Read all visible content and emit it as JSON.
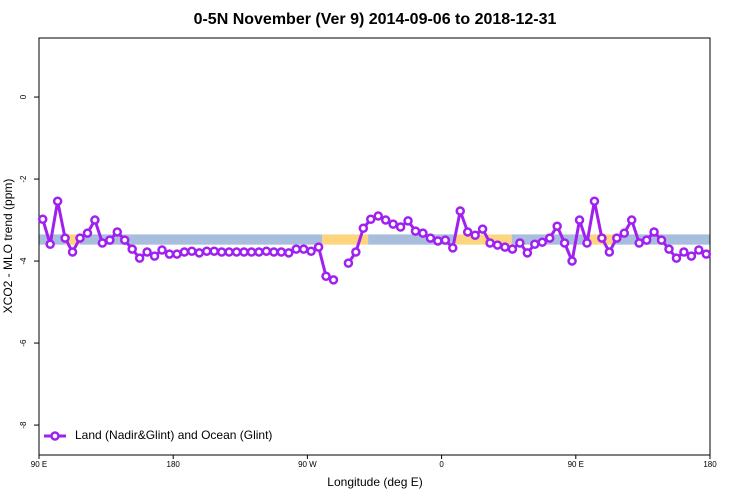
{
  "chart_data": {
    "type": "line",
    "title": "0-5N November (Ver 9)   2014-09-06 to 2018-12-31",
    "x_label": "Longitude (deg E)",
    "y_label": "XCO2 - MLO trend (ppm)",
    "xlim": [
      90,
      540
    ],
    "ylim": [
      -8.73,
      1.44
    ],
    "xticks": [
      {
        "value": 90,
        "label": "90 E"
      },
      180,
      {
        "value": 270,
        "label": "90 W"
      },
      {
        "value": 360,
        "label": "0"
      },
      {
        "value": 450,
        "label": "90 E"
      },
      {
        "value": 540,
        "label": "180"
      }
    ],
    "yticks": [
      0,
      -2,
      -4,
      -6,
      -8
    ],
    "legend": "bottom-left",
    "band_ylim": [
      -3.35,
      -3.6
    ],
    "bands": [
      {
        "x": [
          90,
          108
        ],
        "color": "#a9bedc"
      },
      {
        "x": [
          108,
          117.5
        ],
        "color": "#fdd57e"
      },
      {
        "x": [
          117.5,
          280
        ],
        "color": "#a9bedc"
      },
      {
        "x": [
          280,
          310.7
        ],
        "color": "#fdd57e"
      },
      {
        "x": [
          310.7,
          369
        ],
        "color": "#a9bedc"
      },
      {
        "x": [
          369,
          407
        ],
        "color": "#fdd57e"
      },
      {
        "x": [
          407,
          459.5
        ],
        "color": "#a9bedc"
      },
      {
        "x": [
          459.5,
          476
        ],
        "color": "#fdd57e"
      },
      {
        "x": [
          476,
          540
        ],
        "color": "#a9bedc"
      }
    ],
    "x": [
      92.5,
      97.5,
      102.5,
      107.5,
      112.5,
      117.5,
      122.5,
      127.5,
      132.5,
      137.5,
      142.5,
      147.5,
      152.5,
      157.5,
      162.5,
      167.5,
      172.5,
      177.5,
      182.5,
      187.5,
      192.5,
      197.5,
      202.5,
      207.5,
      212.5,
      217.5,
      222.5,
      227.5,
      232.5,
      237.5,
      242.5,
      247.5,
      252.5,
      257.5,
      262.5,
      267.5,
      272.5,
      277.5,
      282.5,
      287.5,
      292.5,
      297.5,
      302.5,
      307.5,
      312.5,
      317.5,
      322.5,
      327.5,
      332.5,
      337.5,
      342.5,
      347.5,
      352.5,
      357.5,
      362.5,
      367.5,
      372.5,
      377.5,
      382.5,
      387.5,
      392.5,
      397.5,
      402.5,
      407.5,
      412.5,
      417.5,
      422.5,
      427.5,
      432.5,
      437.5,
      442.5,
      447.5,
      452.5,
      457.5,
      462.5,
      467.5,
      472.5,
      477.5,
      482.5,
      487.5,
      492.5,
      497.5,
      502.5,
      507.5,
      512.5,
      517.5,
      522.5,
      527.5,
      532.5,
      537.5
    ],
    "series": [
      {
        "name": "Land (Nadir&Glint) and Ocean (Glint)",
        "color": "#a020f0",
        "values": [
          -2.98,
          -3.59,
          -2.54,
          -3.44,
          -3.78,
          -3.44,
          -3.32,
          -3.0,
          -3.56,
          -3.49,
          -3.29,
          -3.49,
          -3.71,
          -3.93,
          -3.78,
          -3.88,
          -3.73,
          -3.83,
          -3.83,
          -3.78,
          -3.76,
          -3.8,
          -3.76,
          -3.76,
          -3.78,
          -3.78,
          -3.78,
          -3.78,
          -3.78,
          -3.78,
          -3.76,
          -3.78,
          -3.78,
          -3.8,
          -3.71,
          -3.71,
          -3.76,
          -3.66,
          -4.37,
          -4.46,
          null,
          -4.05,
          -3.78,
          -3.2,
          -2.98,
          -2.9,
          -3.0,
          -3.1,
          -3.17,
          -3.02,
          -3.27,
          -3.32,
          -3.44,
          -3.51,
          -3.49,
          -3.68,
          -2.78,
          -3.29,
          -3.37,
          -3.22,
          -3.56,
          -3.61,
          -3.66,
          -3.71,
          -3.56,
          -3.8,
          -3.59,
          -3.54,
          -3.44,
          -3.15,
          -3.56,
          -4.0,
          -3.0,
          -3.56,
          -2.54,
          -3.44,
          -3.78,
          -3.44,
          -3.32,
          -3.0,
          -3.56,
          -3.49,
          -3.29,
          -3.49,
          -3.71,
          -3.93,
          -3.78,
          -3.88,
          -3.73,
          -3.83
        ]
      }
    ]
  }
}
